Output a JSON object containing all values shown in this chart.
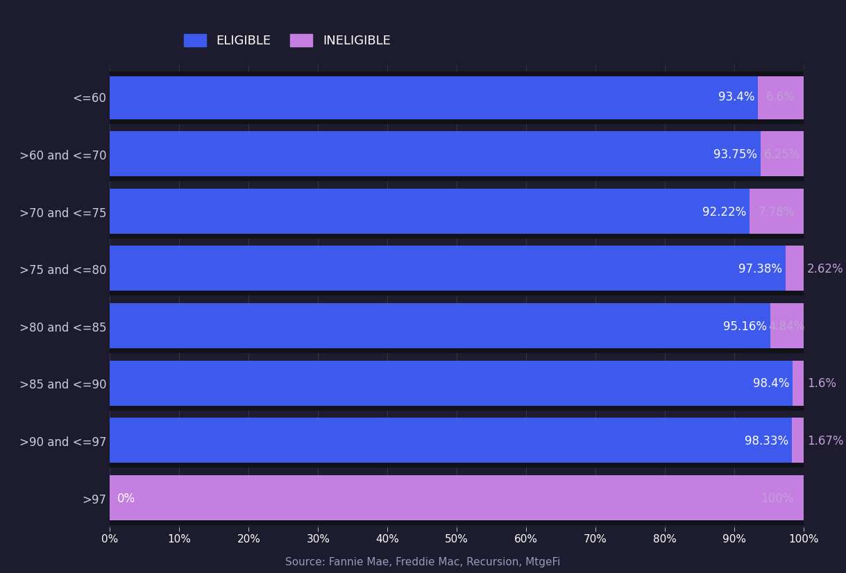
{
  "categories": [
    "<=60",
    ">60 and <=70",
    ">70 and <=75",
    ">75 and <=80",
    ">80 and <=85",
    ">85 and <=90",
    ">90 and <=97",
    ">97"
  ],
  "eligible": [
    93.4,
    93.75,
    92.22,
    97.38,
    95.16,
    98.4,
    98.33,
    0.0
  ],
  "ineligible": [
    6.6,
    6.25,
    7.78,
    2.62,
    4.84,
    1.6,
    1.67,
    100.0
  ],
  "eligible_labels": [
    "93.4%",
    "93.75%",
    "92.22%",
    "97.38%",
    "95.16%",
    "98.4%",
    "98.33%",
    "0%"
  ],
  "ineligible_labels": [
    "6.6%",
    "6.25%",
    "7.78%",
    "2.62%",
    "4.84%",
    "1.6%",
    "1.67%",
    "100%"
  ],
  "inelig_inside": [
    true,
    true,
    true,
    false,
    true,
    false,
    false,
    true
  ],
  "eligible_color": "#3d5aed",
  "ineligible_color": "#c47fe0",
  "background_color": "#1c1c2e",
  "separator_color": "#111118",
  "text_color": "#ffffff",
  "ytick_color": "#ccccdd",
  "eligible_label_color": "#ffffff",
  "ineligible_label_color_inside": "#c0a0d8",
  "ineligible_label_color_outside": "#c0a0d8",
  "source_text": "Source: Fannie Mae, Freddie Mac, Recursion, MtgeFi",
  "source_color": "#9999bb",
  "legend_eligible": "ELIGIBLE",
  "legend_ineligible": "INELIGIBLE",
  "xtick_labels": [
    "0%",
    "10%",
    "20%",
    "30%",
    "40%",
    "50%",
    "60%",
    "70%",
    "80%",
    "90%",
    "100%"
  ],
  "xtick_values": [
    0,
    10,
    20,
    30,
    40,
    50,
    60,
    70,
    80,
    90,
    100
  ],
  "bar_height": 0.82,
  "fontsize_bar_label": 12,
  "fontsize_ytick": 12,
  "fontsize_xtick": 11,
  "fontsize_legend": 13,
  "fontsize_source": 11
}
